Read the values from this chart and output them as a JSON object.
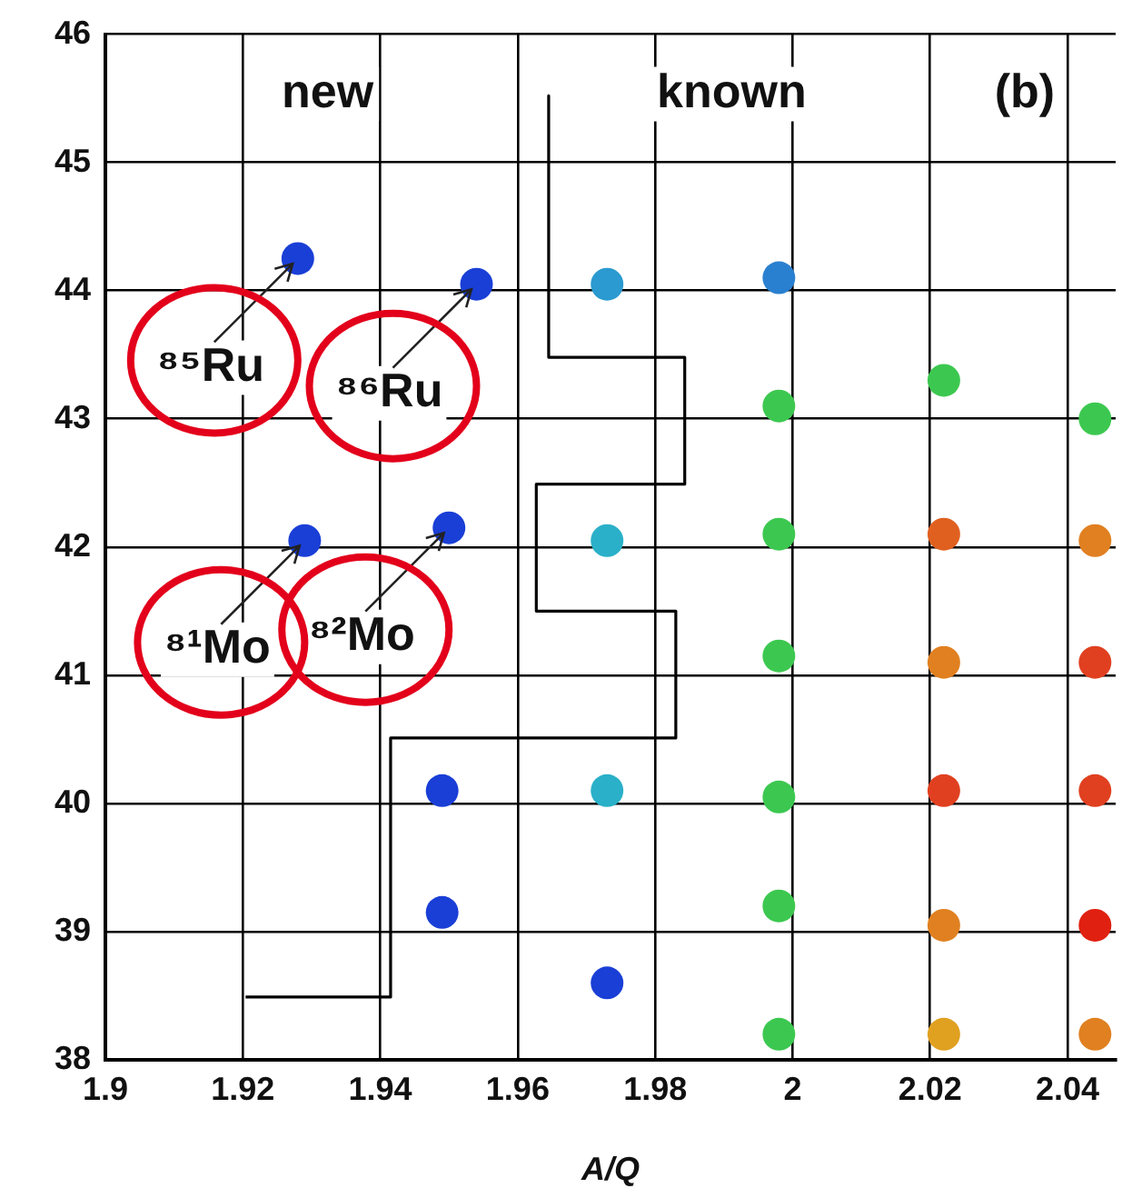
{
  "chart_data": {
    "type": "scatter",
    "xlabel": "A/Q",
    "xlim": [
      1.9,
      2.047
    ],
    "xticks": [
      1.9,
      1.92,
      1.94,
      1.96,
      1.98,
      2,
      2.02,
      2.04
    ],
    "ylim": [
      38,
      46
    ],
    "yticks": [
      38,
      39,
      40,
      41,
      42,
      43,
      44,
      45,
      46
    ],
    "grid": true,
    "legend": false,
    "marker": "circle",
    "annotations": [
      "new",
      "known",
      "(b)",
      {
        "text": "⁸⁵Ru",
        "x": 1.928,
        "y": 44.25
      },
      {
        "text": "⁸⁶Ru",
        "x": 1.954,
        "y": 44.05
      },
      {
        "text": "⁸¹Mo",
        "x": 1.929,
        "y": 42.05
      },
      {
        "text": "⁸²Mo",
        "x": 1.95,
        "y": 42.15
      }
    ],
    "series": [
      {
        "x": [
          1.928,
          1.954,
          1.929,
          1.95,
          1.949,
          1.949,
          1.973,
          1.973,
          1.973,
          1.973,
          1.998,
          1.998,
          1.998,
          1.998,
          1.998,
          1.998,
          1.998,
          2.022,
          2.022,
          2.022,
          2.022,
          2.022,
          2.022,
          2.044,
          2.044,
          2.044,
          2.044,
          2.044,
          2.044
        ],
        "values": [
          44.25,
          44.05,
          42.05,
          42.15,
          40.1,
          39.15,
          44.05,
          42.05,
          40.1,
          38.6,
          44.1,
          43.1,
          42.1,
          41.15,
          40.05,
          39.2,
          38.2,
          43.3,
          42.1,
          41.1,
          40.1,
          39.05,
          38.2,
          43.0,
          42.05,
          41.1,
          40.1,
          39.05,
          38.2
        ],
        "colors": [
          "#1a3fd6",
          "#1a3fd6",
          "#1a3fd6",
          "#1a3fd6",
          "#1a3fd6",
          "#1a3fd6",
          "#2a9ad0",
          "#2ab0c8",
          "#2ab0c8",
          "#1a3fd6",
          "#2a80d0",
          "#3cc850",
          "#3cc850",
          "#3cc850",
          "#3cc850",
          "#3cc850",
          "#3cc850",
          "#3cc850",
          "#e06020",
          "#e08020",
          "#e04020",
          "#e08020",
          "#e0a020",
          "#3cc850",
          "#e08020",
          "#e04020",
          "#e04020",
          "#e02010",
          "#e08020"
        ]
      },
      {
        "type": "line",
        "color": "#000000",
        "marker": "none",
        "x": [
          1.9645,
          1.9645,
          1.9843,
          1.9843,
          1.9627,
          1.9627,
          1.983,
          1.983,
          1.9415,
          1.9415,
          1.9204
        ],
        "values": [
          45.52,
          43.48,
          43.48,
          42.49,
          42.49,
          41.5,
          41.5,
          40.51,
          40.51,
          38.49,
          38.49
        ]
      }
    ]
  }
}
